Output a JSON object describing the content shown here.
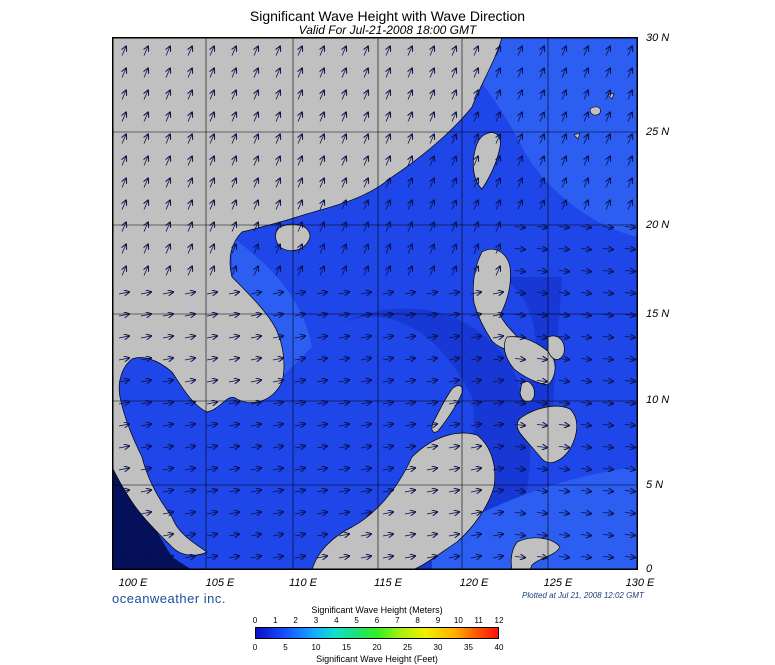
{
  "title": "Significant Wave Height with Wave Direction",
  "subtitle": "Valid For Jul-21-2008 18:00 GMT",
  "lat_labels": [
    "30 N",
    "25 N",
    "20 N",
    "15 N",
    "10 N",
    "5 N",
    "0"
  ],
  "lon_labels": [
    "100 E",
    "105 E",
    "110 E",
    "115 E",
    "120 E",
    "125 E",
    "130 E"
  ],
  "brand": "oceanweather inc.",
  "plotted": "Plotted at Jul 21, 2008 12:02 GMT",
  "colorbar": {
    "title_top": "Significant Wave Height (Meters)",
    "title_bottom": "Significant Wave Height (Feet)",
    "meters_ticks": [
      "0",
      "1",
      "2",
      "3",
      "4",
      "5",
      "6",
      "7",
      "8",
      "9",
      "10",
      "11",
      "12"
    ],
    "feet_ticks": [
      "0",
      "5",
      "10",
      "15",
      "20",
      "25",
      "30",
      "35",
      "40"
    ]
  },
  "colors": {
    "land": "#c0c0c0",
    "deep_blue": "#0b1ea8",
    "mid_blue": "#1f46e8",
    "light_blue": "#2f66f5",
    "arrow": "#0a0f4a"
  }
}
